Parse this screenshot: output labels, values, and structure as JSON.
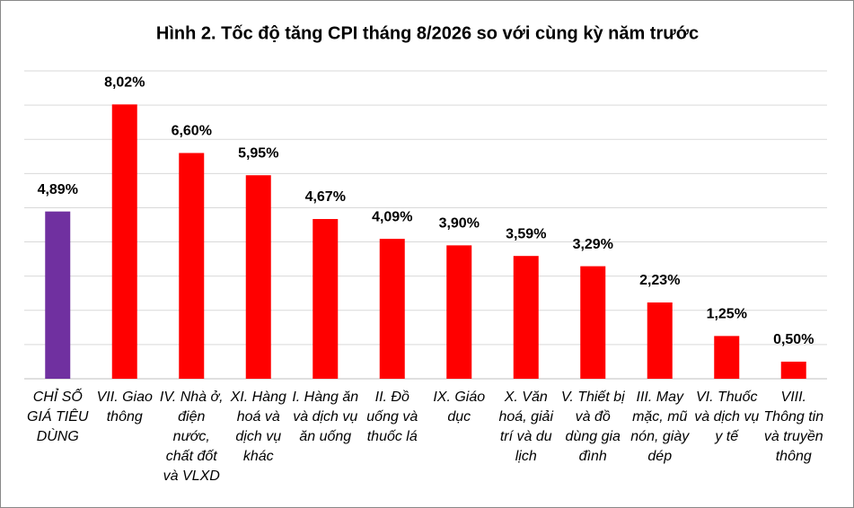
{
  "chart_data": {
    "type": "bar",
    "title": "Hình 2. Tốc độ tăng CPI tháng 8/2026 so với cùng kỳ năm trước",
    "categories": [
      "CHỈ SỐ GIÁ TIÊU DÙNG",
      "VII. Giao thông",
      "IV. Nhà ở, điện nước, chất đốt và VLXD",
      "XI. Hàng hoá và dịch vụ khác",
      "I. Hàng ăn và dịch vụ ăn uống",
      "II. Đồ uống và thuốc lá",
      "IX. Giáo dục",
      "X. Văn hoá, giải trí và du lịch",
      "V. Thiết bị và đồ dùng gia đình",
      "III. May mặc, mũ nón, giày dép",
      "VI. Thuốc và dịch vụ y tế",
      "VIII. Thông tin và truyền thông"
    ],
    "values": [
      4.89,
      8.02,
      6.6,
      5.95,
      4.67,
      4.09,
      3.9,
      3.59,
      3.29,
      2.23,
      1.25,
      0.5
    ],
    "value_labels": [
      "4,89%",
      "8,02%",
      "6,60%",
      "5,95%",
      "4,67%",
      "4,09%",
      "3,90%",
      "3,59%",
      "3,29%",
      "2,23%",
      "1,25%",
      "0,50%"
    ],
    "colors": [
      "#7030a0",
      "#ff0000",
      "#ff0000",
      "#ff0000",
      "#ff0000",
      "#ff0000",
      "#ff0000",
      "#ff0000",
      "#ff0000",
      "#ff0000",
      "#ff0000",
      "#ff0000"
    ],
    "ylim": [
      0,
      9
    ],
    "yticks": [
      0,
      1,
      2,
      3,
      4,
      5,
      6,
      7,
      8,
      9
    ],
    "grid": true
  }
}
